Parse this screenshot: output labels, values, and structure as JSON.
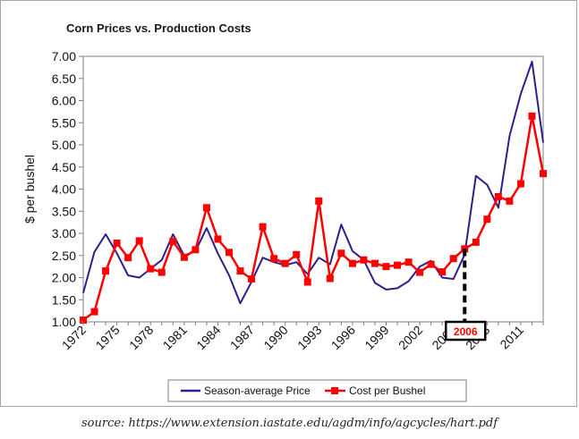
{
  "chart_data": {
    "type": "line",
    "title": "Corn Prices vs. Production Costs",
    "xlabel": "",
    "ylabel": "$ per bushel",
    "ylim": [
      1.0,
      7.0
    ],
    "yticks": [
      "1.00",
      "1.50",
      "2.00",
      "2.50",
      "3.00",
      "3.50",
      "4.00",
      "4.50",
      "5.00",
      "5.50",
      "6.00",
      "6.50",
      "7.00"
    ],
    "xlim": [
      1972,
      2013
    ],
    "xticks": [
      "1972",
      "1975",
      "1978",
      "1981",
      "1984",
      "1987",
      "1990",
      "1993",
      "1996",
      "1999",
      "2002",
      "2005",
      "2008",
      "2011"
    ],
    "x": [
      1972,
      1973,
      1974,
      1975,
      1976,
      1977,
      1978,
      1979,
      1980,
      1981,
      1982,
      1983,
      1984,
      1985,
      1986,
      1987,
      1988,
      1989,
      1990,
      1991,
      1992,
      1993,
      1994,
      1995,
      1996,
      1997,
      1998,
      1999,
      2000,
      2001,
      2002,
      2003,
      2004,
      2005,
      2006,
      2007,
      2008,
      2009,
      2010,
      2011,
      2012,
      2013
    ],
    "series": [
      {
        "name": "Season-average Price",
        "color": "#2e1f8f",
        "marker": "none",
        "values": [
          1.65,
          2.58,
          2.98,
          2.55,
          2.05,
          2.0,
          2.2,
          2.4,
          2.98,
          2.5,
          2.6,
          3.12,
          2.55,
          2.05,
          1.42,
          1.9,
          2.45,
          2.35,
          2.28,
          2.35,
          2.08,
          2.45,
          2.3,
          3.2,
          2.6,
          2.4,
          1.88,
          1.73,
          1.76,
          1.92,
          2.25,
          2.38,
          2.0,
          1.97,
          2.52,
          4.3,
          4.1,
          3.58,
          5.2,
          6.15,
          6.88,
          5.05
        ]
      },
      {
        "name": "Cost per Bushel",
        "color": "#ff0000",
        "marker": "square",
        "values": [
          1.04,
          1.23,
          2.15,
          2.78,
          2.45,
          2.83,
          2.2,
          2.12,
          2.82,
          2.46,
          2.63,
          3.58,
          2.87,
          2.57,
          2.15,
          1.97,
          3.15,
          2.43,
          2.32,
          2.52,
          1.9,
          3.73,
          1.98,
          2.55,
          2.32,
          2.4,
          2.32,
          2.25,
          2.28,
          2.35,
          2.12,
          2.3,
          2.13,
          2.43,
          2.65,
          2.8,
          3.32,
          3.83,
          3.73,
          4.12,
          5.65,
          4.35
        ]
      }
    ],
    "annotation": {
      "label": "2006",
      "x": 2006,
      "color": "#ff0000"
    },
    "legend_position": "bottom"
  },
  "source": "source: https://www.extension.iastate.edu/agdm/info/agcycles/hart.pdf"
}
